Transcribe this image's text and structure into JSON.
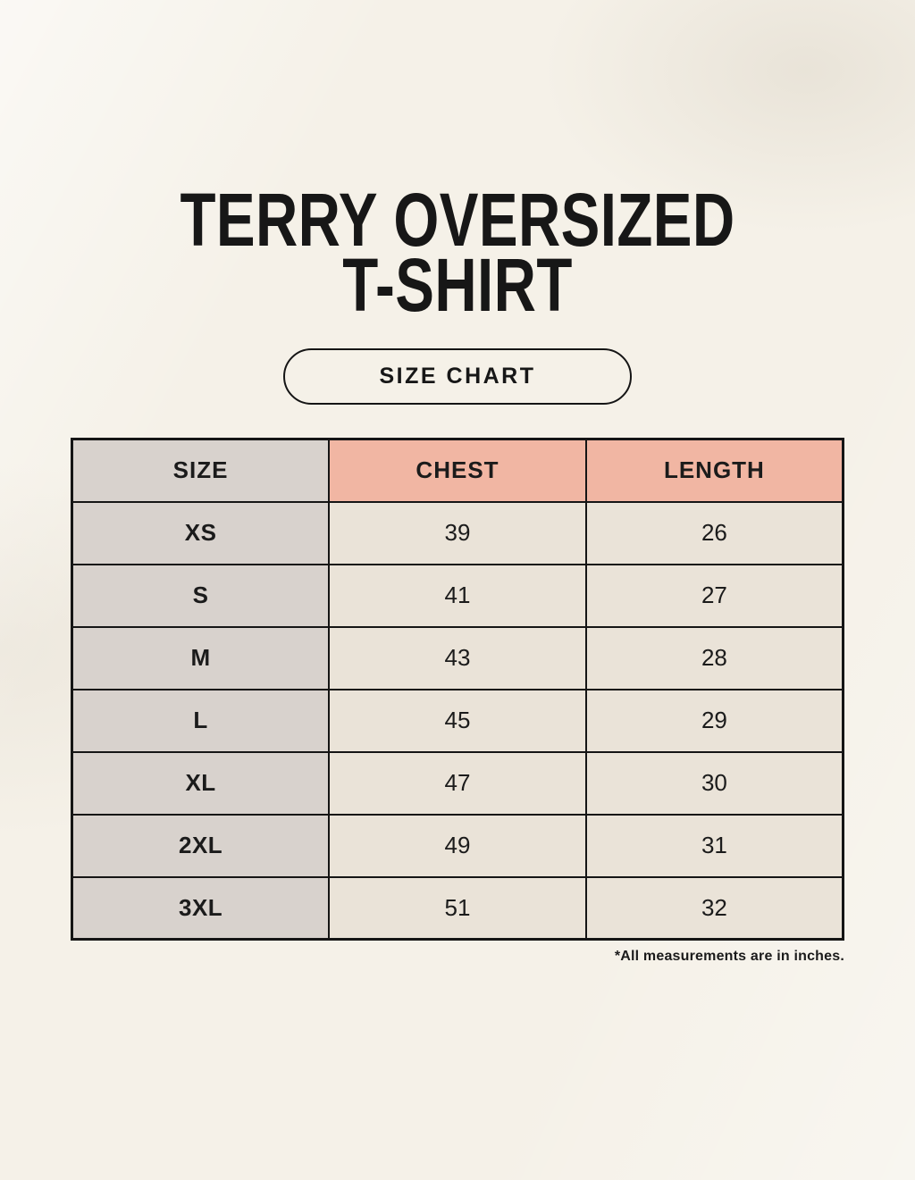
{
  "header": {
    "title_line1": "TERRY OVERSIZED",
    "title_line2": "T-SHIRT"
  },
  "size_chart_button": {
    "label": "SIZE CHART"
  },
  "size_chart": {
    "columns": [
      "SIZE",
      "CHEST",
      "LENGTH"
    ],
    "rows": [
      {
        "size": "XS",
        "chest": "39",
        "length": "26"
      },
      {
        "size": "S",
        "chest": "41",
        "length": "27"
      },
      {
        "size": "M",
        "chest": "43",
        "length": "28"
      },
      {
        "size": "L",
        "chest": "45",
        "length": "29"
      },
      {
        "size": "XL",
        "chest": "47",
        "length": "30"
      },
      {
        "size": "2XL",
        "chest": "49",
        "length": "31"
      },
      {
        "size": "3XL",
        "chest": "51",
        "length": "32"
      }
    ],
    "footnote": "*All measurements are in inches."
  },
  "chart_data": {
    "type": "table",
    "title": "TERRY OVERSIZED T-SHIRT SIZE CHART",
    "columns": [
      "SIZE",
      "CHEST",
      "LENGTH"
    ],
    "units": "inches",
    "rows": [
      [
        "XS",
        39,
        26
      ],
      [
        "S",
        41,
        27
      ],
      [
        "M",
        43,
        28
      ],
      [
        "L",
        45,
        29
      ],
      [
        "XL",
        47,
        30
      ],
      [
        "2XL",
        49,
        31
      ],
      [
        "3XL",
        51,
        32
      ]
    ]
  },
  "colors": {
    "background_cream": "#f5f1e8",
    "header_pink": "#f1b6a3",
    "size_column_gray": "#d8d2cd",
    "cell_cream": "#eae3d8",
    "border_black": "#151515",
    "text_black": "#1b1b1b"
  }
}
